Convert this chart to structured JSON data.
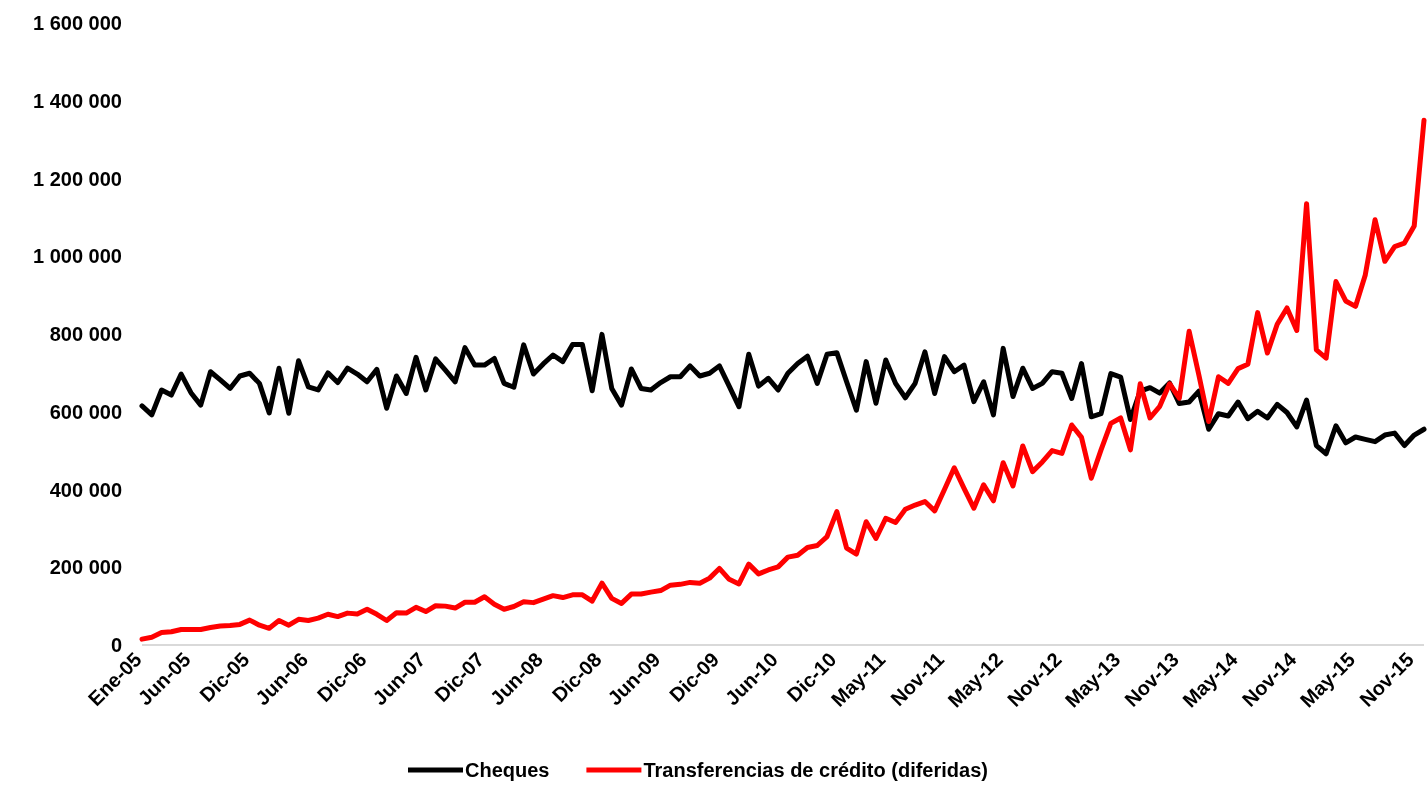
{
  "chart_data": {
    "type": "line",
    "categories": [
      "Ene-05",
      null,
      null,
      null,
      null,
      "Jun-05",
      null,
      null,
      null,
      null,
      null,
      "Dic-05",
      null,
      null,
      null,
      null,
      null,
      "Jun-06",
      null,
      null,
      null,
      null,
      null,
      "Dic-06",
      null,
      null,
      null,
      null,
      null,
      "Jun-07",
      null,
      null,
      null,
      null,
      null,
      "Dic-07",
      null,
      null,
      null,
      null,
      null,
      "Jun-08",
      null,
      null,
      null,
      null,
      null,
      "Dic-08",
      null,
      null,
      null,
      null,
      null,
      "Jun-09",
      null,
      null,
      null,
      null,
      null,
      "Dic-09",
      null,
      null,
      null,
      null,
      null,
      "Jun-10",
      null,
      null,
      null,
      null,
      null,
      "Dic-10",
      null,
      null,
      null,
      null,
      "May-11",
      null,
      null,
      null,
      null,
      null,
      "Nov-11",
      null,
      null,
      null,
      null,
      null,
      "May-12",
      null,
      null,
      null,
      null,
      null,
      "Nov-12",
      null,
      null,
      null,
      null,
      null,
      "May-13",
      null,
      null,
      null,
      null,
      null,
      "Nov-13",
      null,
      null,
      null,
      null,
      null,
      "May-14",
      null,
      null,
      null,
      null,
      null,
      "Nov-14",
      null,
      null,
      null,
      null,
      null,
      "May-15",
      null,
      null,
      null,
      null,
      null,
      "Nov-15",
      null
    ],
    "series": [
      {
        "name": "Cheques",
        "color": "#000000",
        "values": [
          615000,
          592000,
          656000,
          643000,
          697000,
          649000,
          617000,
          703000,
          682000,
          660000,
          692000,
          699000,
          673000,
          597000,
          712000,
          596000,
          731000,
          664000,
          656000,
          700000,
          675000,
          712000,
          697000,
          677000,
          709000,
          609000,
          692000,
          647000,
          740000,
          656000,
          736000,
          707000,
          677000,
          765000,
          720000,
          720000,
          737000,
          673000,
          663000,
          772000,
          697000,
          723000,
          746000,
          729000,
          773000,
          773000,
          654000,
          799000,
          660000,
          617000,
          710000,
          660000,
          656000,
          675000,
          690000,
          690000,
          718000,
          692000,
          699000,
          718000,
          666000,
          613000,
          748000,
          666000,
          686000,
          656000,
          699000,
          724000,
          743000,
          673000,
          748000,
          752000,
          677000,
          604000,
          729000,
          622000,
          733000,
          673000,
          636000,
          673000,
          754000,
          647000,
          742000,
          703000,
          720000,
          626000,
          677000,
          592000,
          763000,
          639000,
          712000,
          660000,
          673000,
          703000,
          699000,
          634000,
          724000,
          587000,
          595000,
          698000,
          689000,
          580000,
          653000,
          662000,
          648000,
          674000,
          621000,
          625000,
          653000,
          555000,
          595000,
          589000,
          625000,
          582000,
          601000,
          584000,
          619000,
          598000,
          561000,
          630000,
          513000,
          492000,
          564000,
          520000,
          535000,
          529000,
          523000,
          540000,
          545000,
          513000,
          540000,
          555000
        ]
      },
      {
        "name": "Transferencias de crédito (diferidas)",
        "color": "#ff0000",
        "values": [
          15000,
          20000,
          32000,
          34000,
          40000,
          40000,
          40000,
          45000,
          49000,
          50000,
          53000,
          64000,
          51000,
          43000,
          63000,
          51000,
          66000,
          63000,
          69000,
          79000,
          73000,
          82000,
          80000,
          92000,
          79000,
          63000,
          83000,
          82000,
          97000,
          86000,
          101000,
          100000,
          95000,
          110000,
          110000,
          124000,
          105000,
          92000,
          99000,
          111000,
          109000,
          118000,
          127000,
          122000,
          129000,
          129000,
          113000,
          159000,
          120000,
          107000,
          131000,
          131000,
          136000,
          140000,
          154000,
          156000,
          161000,
          159000,
          172000,
          197000,
          169000,
          157000,
          208000,
          183000,
          193000,
          201000,
          226000,
          231000,
          251000,
          256000,
          279000,
          343000,
          249000,
          234000,
          317000,
          274000,
          326000,
          315000,
          349000,
          360000,
          369000,
          345000,
          400000,
          456000,
          403000,
          352000,
          412000,
          371000,
          469000,
          409000,
          512000,
          446000,
          471000,
          500000,
          493000,
          566000,
          534000,
          429000,
          502000,
          570000,
          584000,
          502000,
          672000,
          584000,
          614000,
          672000,
          635000,
          807000,
          694000,
          575000,
          690000,
          673000,
          711000,
          722000,
          855000,
          751000,
          825000,
          867000,
          809000,
          1135000,
          759000,
          738000,
          935000,
          885000,
          871000,
          952000,
          1094000,
          987000,
          1025000,
          1034000,
          1078000,
          1350000
        ]
      }
    ],
    "ylim": [
      0,
      1600000
    ],
    "yticks": [
      0,
      {
        "value": 200000,
        "label": "200 000"
      },
      {
        "value": 400000,
        "label": "400 000"
      },
      {
        "value": 600000,
        "label": "600 000"
      },
      {
        "value": 800000,
        "label": "800 000"
      },
      {
        "value": 1000000,
        "label": "1 000 000"
      },
      {
        "value": 1200000,
        "label": "1 200 000"
      },
      {
        "value": 1400000,
        "label": "1 400 000"
      },
      {
        "value": 1600000,
        "label": "1 600 000"
      }
    ],
    "grid": false,
    "legend": "bottom",
    "marker": "none",
    "line_style": "solid"
  }
}
